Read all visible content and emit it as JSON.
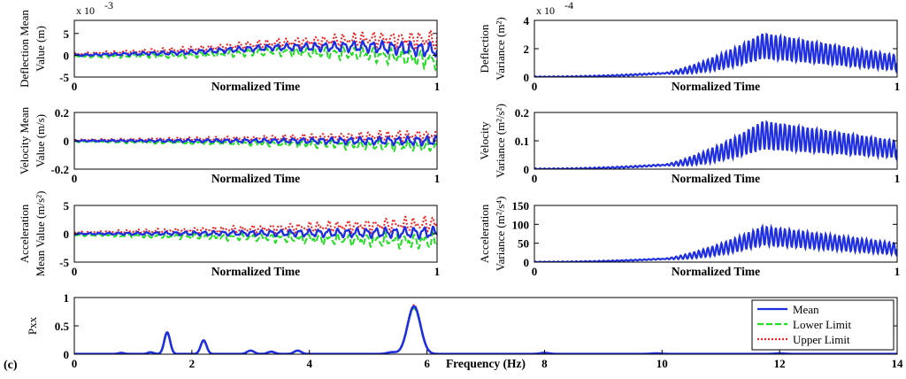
{
  "panel_label": "(c)",
  "colors": {
    "mean": "#1f2fe0",
    "lower": "#22dd22",
    "upper": "#ee2222",
    "axis": "#000000"
  },
  "legend": {
    "position": "top-right",
    "items": [
      {
        "label": "Mean",
        "style": "solid",
        "color": "#1f2fe0"
      },
      {
        "label": "Lower Limit",
        "style": "dashed",
        "color": "#22dd22"
      },
      {
        "label": "Upper Limit",
        "style": "dotted",
        "color": "#ee2222"
      }
    ]
  },
  "chart_data": [
    {
      "id": "defl-mean",
      "type": "line",
      "title": "",
      "xlabel": "Normalized Time",
      "ylabel": [
        "Deflection Mean",
        "Value (m)"
      ],
      "exponent_label": "x 10",
      "exponent_power": "-3",
      "xlim": [
        0,
        1
      ],
      "ylim": [
        -5,
        8
      ],
      "xticks": [
        "0",
        "1"
      ],
      "yticks": [
        "5",
        "0",
        "-5"
      ],
      "ytick_values": [
        5,
        0,
        -5
      ],
      "envelope": {
        "scale_max": 3.0,
        "knee": 0.55,
        "wobble": 1.0,
        "base": [
          [
            0,
            0
          ],
          [
            0.3,
            0.6
          ],
          [
            0.55,
            1.8
          ],
          [
            0.8,
            2.0
          ],
          [
            1,
            1.2
          ]
        ],
        "spread": 2.0
      },
      "series": [
        {
          "name": "Mean"
        },
        {
          "name": "Lower Limit"
        },
        {
          "name": "Upper Limit"
        }
      ]
    },
    {
      "id": "defl-var",
      "type": "line",
      "title": "",
      "xlabel": "Normalized Time",
      "ylabel": [
        "Deflection",
        "Variance (m²)"
      ],
      "exponent_label": "x 10",
      "exponent_power": "-4",
      "xlim": [
        0,
        1
      ],
      "ylim": [
        0,
        4
      ],
      "xticks": [
        "0",
        "1"
      ],
      "yticks": [
        "4",
        "2",
        "0"
      ],
      "ytick_values": [
        4,
        2,
        0
      ],
      "variance_profile": {
        "peak_x": 0.63,
        "peak_y": 2.2,
        "amp": 0.9,
        "end_y": 1.0,
        "start_y": 0.0
      },
      "series": [
        {
          "name": "Mean"
        }
      ]
    },
    {
      "id": "vel-mean",
      "type": "line",
      "title": "",
      "xlabel": "Normalized Time",
      "ylabel": [
        "Velocity Mean",
        "Value (m/s)"
      ],
      "xlim": [
        0,
        1
      ],
      "ylim": [
        -0.2,
        0.2
      ],
      "xticks": [
        "0",
        "1"
      ],
      "yticks": [
        "0.2",
        "0",
        "-0.2"
      ],
      "ytick_values": [
        0.2,
        0,
        -0.2
      ],
      "envelope": {
        "scale_max": 0.05,
        "knee": 0.5,
        "wobble": 0.02,
        "base": [
          [
            0,
            0
          ],
          [
            0.5,
            0.0
          ],
          [
            1,
            0.0
          ]
        ],
        "spread": 0.035
      },
      "series": [
        {
          "name": "Mean"
        },
        {
          "name": "Lower Limit"
        },
        {
          "name": "Upper Limit"
        }
      ]
    },
    {
      "id": "vel-var",
      "type": "line",
      "title": "",
      "xlabel": "Normalized Time",
      "ylabel": [
        "Velocity",
        "Variance (m²/s²)"
      ],
      "xlim": [
        0,
        1
      ],
      "ylim": [
        0,
        0.2
      ],
      "xticks": [
        "0",
        "1"
      ],
      "yticks": [
        "0.2",
        "0.1",
        "0"
      ],
      "ytick_values": [
        0.2,
        0.1,
        0
      ],
      "variance_profile": {
        "peak_x": 0.63,
        "peak_y": 0.12,
        "amp": 0.05,
        "end_y": 0.07,
        "start_y": 0.0
      },
      "series": [
        {
          "name": "Mean"
        }
      ]
    },
    {
      "id": "acc-mean",
      "type": "line",
      "title": "",
      "xlabel": "Normalized Time",
      "ylabel": [
        "Acceleration",
        "Mean Value (m/s²)"
      ],
      "xlim": [
        0,
        1
      ],
      "ylim": [
        -5,
        5
      ],
      "xticks": [
        "0",
        "1"
      ],
      "yticks": [
        "5",
        "0",
        "-5"
      ],
      "ytick_values": [
        5,
        0,
        -5
      ],
      "envelope": {
        "scale_max": 1.6,
        "knee": 0.45,
        "wobble": 0.6,
        "base": [
          [
            0,
            0
          ],
          [
            1,
            0.2
          ]
        ],
        "spread": 1.4
      },
      "series": [
        {
          "name": "Mean"
        },
        {
          "name": "Lower Limit"
        },
        {
          "name": "Upper Limit"
        }
      ]
    },
    {
      "id": "acc-var",
      "type": "line",
      "title": "",
      "xlabel": "Normalized Time",
      "ylabel": [
        "Acceleration",
        "Variance (m²/s⁴)"
      ],
      "xlim": [
        0,
        1
      ],
      "ylim": [
        0,
        150
      ],
      "xticks": [
        "0",
        "1"
      ],
      "yticks": [
        "150",
        "100",
        "50",
        "0"
      ],
      "ytick_values": [
        150,
        100,
        50,
        0
      ],
      "variance_profile": {
        "peak_x": 0.63,
        "peak_y": 70,
        "amp": 25,
        "end_y": 35,
        "start_y": 0
      },
      "series": [
        {
          "name": "Mean"
        }
      ]
    },
    {
      "id": "pxx",
      "type": "line",
      "title": "",
      "xlabel": "Frequency (Hz)",
      "ylabel": [
        "Pxx"
      ],
      "xlim": [
        0,
        14
      ],
      "ylim": [
        0,
        1
      ],
      "xticks": [
        "0",
        "2",
        "4",
        "6",
        "8",
        "10",
        "12",
        "14"
      ],
      "xtick_values": [
        0,
        2,
        4,
        6,
        8,
        10,
        12,
        14
      ],
      "yticks": [
        "1",
        "0.5",
        "0"
      ],
      "ytick_values": [
        1,
        0.5,
        0
      ],
      "peaks": [
        {
          "x": 0.8,
          "y": 0.02,
          "w": 0.05
        },
        {
          "x": 1.3,
          "y": 0.03,
          "w": 0.05
        },
        {
          "x": 1.58,
          "y": 0.38,
          "w": 0.05
        },
        {
          "x": 2.2,
          "y": 0.24,
          "w": 0.05
        },
        {
          "x": 3.0,
          "y": 0.06,
          "w": 0.06
        },
        {
          "x": 3.35,
          "y": 0.04,
          "w": 0.06
        },
        {
          "x": 3.8,
          "y": 0.06,
          "w": 0.06
        },
        {
          "x": 5.4,
          "y": 0.03,
          "w": 0.08
        },
        {
          "x": 5.78,
          "y": 0.84,
          "w": 0.11
        },
        {
          "x": 8.0,
          "y": 0.02,
          "w": 0.08
        },
        {
          "x": 9.9,
          "y": 0.01,
          "w": 0.1
        },
        {
          "x": 12.0,
          "y": 0.01,
          "w": 0.1
        }
      ],
      "series": [
        {
          "name": "Mean"
        },
        {
          "name": "Lower Limit"
        },
        {
          "name": "Upper Limit"
        }
      ]
    }
  ]
}
